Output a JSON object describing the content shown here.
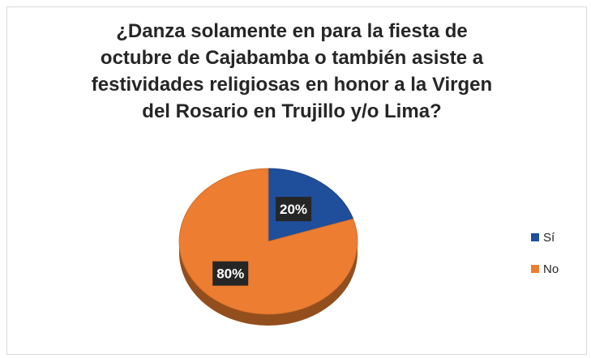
{
  "chart_data": {
    "type": "pie",
    "title_lines": [
      "¿Danza solamente en para la fiesta de",
      "octubre de Cajabamba o también asiste a",
      "festividades religiosas en honor a la Virgen",
      "del Rosario en Trujillo y/o Lima?"
    ],
    "slices": [
      {
        "name": "Sí",
        "value": 20,
        "label": "20%",
        "color": "#1f4e9b"
      },
      {
        "name": "No",
        "value": 80,
        "label": "80%",
        "color": "#ed7d31"
      }
    ],
    "legend_position": "right",
    "three_d": true
  }
}
